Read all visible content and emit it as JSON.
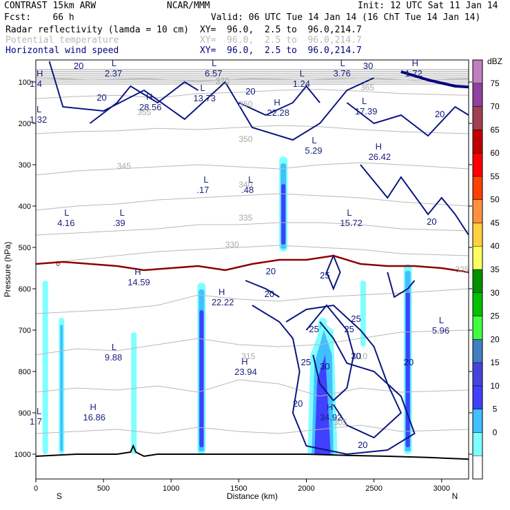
{
  "header": {
    "title": "CONTRAST 15km ARW",
    "org": "NCAR/MMM",
    "init": "Init: 12 UTC Sat 11 Jan 14",
    "fcst": "Fcst:    66 h",
    "valid": "Valid: 06 UTC Tue 14 Jan 14 (16 ChT Tue 14 Jan 14)",
    "fields": [
      {
        "name": "Radar reflectivity (lamda = 10 cm)",
        "xy": "XY=  96.0,  2.5 to  96.0,214.7",
        "color": "#000000"
      },
      {
        "name": "Potential temperature",
        "xy": "XY=  96.0,  2.5 to  96.0,214.7",
        "color": "#b8b8b8"
      },
      {
        "name": "Horizontal wind speed",
        "xy": "XY=  96.0,  2.5 to  96.0,214.7",
        "color": "#000080"
      }
    ]
  },
  "chart_data": {
    "type": "cross-section",
    "xlabel": "Distance (km)",
    "ylabel": "Pressure (hPa)",
    "xlim": [
      0,
      3200
    ],
    "ylim": [
      1050,
      50
    ],
    "x_ticks": [
      0,
      500,
      1000,
      1500,
      2000,
      2500,
      3000
    ],
    "y_ticks": [
      100,
      200,
      300,
      400,
      500,
      600,
      700,
      800,
      900,
      1000
    ],
    "x_end_labels": {
      "left": "S",
      "right": "N"
    },
    "colorbar": {
      "unit": "dBZ",
      "levels": [
        0,
        5,
        10,
        15,
        20,
        25,
        30,
        35,
        40,
        45,
        50,
        55,
        60,
        65,
        70,
        75
      ],
      "colors": [
        "#ffffff",
        "#80ffff",
        "#40c0ff",
        "#4040ff",
        "#4444dd",
        "#4080c0",
        "#40ff40",
        "#00c000",
        "#009000",
        "#ffff60",
        "#ffd040",
        "#ff9040",
        "#ff4000",
        "#ff0000",
        "#c00000",
        "#a04050",
        "#9040a0",
        "#c080c0"
      ]
    },
    "reflectivity_columns": [
      {
        "x": 70,
        "top": 580,
        "bottom": 1000,
        "max_dbz": 10
      },
      {
        "x": 190,
        "top": 670,
        "bottom": 1000,
        "max_dbz": 15
      },
      {
        "x": 725,
        "top": 705,
        "bottom": 1000,
        "max_dbz": 10
      },
      {
        "x": 1225,
        "top": 585,
        "bottom": 1000,
        "max_dbz": 20
      },
      {
        "x": 1830,
        "top": 280,
        "bottom": 510,
        "max_dbz": 20
      },
      {
        "x": 2120,
        "top": 670,
        "bottom": 1000,
        "max_dbz": 20
      },
      {
        "x": 2420,
        "top": 580,
        "bottom": 740,
        "max_dbz": 10
      },
      {
        "x": 2750,
        "top": 540,
        "bottom": 1000,
        "max_dbz": 20
      }
    ],
    "theta_labels": [
      "370",
      "365",
      "360",
      "355",
      "350",
      "345",
      "340",
      "335",
      "330",
      "325",
      "310",
      "305",
      "315"
    ],
    "wind_labels": [
      "20",
      "25",
      "30"
    ],
    "extrema": [
      {
        "type": "H",
        "value": "28.56",
        "x": 815,
        "p": 150
      },
      {
        "type": "L",
        "value": "13.73",
        "x": 1215,
        "p": 128
      },
      {
        "type": "H",
        "value": "22.28",
        "x": 1760,
        "p": 163
      },
      {
        "type": "L",
        "value": "17.39",
        "x": 2410,
        "p": 160
      },
      {
        "type": "L",
        "value": "1.32",
        "x": 5,
        "p": 180
      },
      {
        "type": "L",
        "value": "5.29",
        "x": 2040,
        "p": 255
      },
      {
        "type": "H",
        "value": "26.42",
        "x": 2510,
        "p": 270
      },
      {
        "type": "L",
        "value": ".17",
        "x": 1240,
        "p": 350
      },
      {
        "type": "L",
        "value": ".48",
        "x": 1570,
        "p": 350
      },
      {
        "type": "L",
        "value": "4.16",
        "x": 210,
        "p": 430
      },
      {
        "type": "L",
        "value": ".39",
        "x": 620,
        "p": 430
      },
      {
        "type": "L",
        "value": "15.72",
        "x": 2300,
        "p": 430
      },
      {
        "type": "H",
        "value": "14.59",
        "x": 730,
        "p": 573
      },
      {
        "type": "H",
        "value": "22.22",
        "x": 1350,
        "p": 622
      },
      {
        "type": "L",
        "value": "5.96",
        "x": 2980,
        "p": 690
      },
      {
        "type": "L",
        "value": "9.88",
        "x": 560,
        "p": 755
      },
      {
        "type": "H",
        "value": "23.94",
        "x": 1520,
        "p": 790
      },
      {
        "type": "H",
        "value": "16.86",
        "x": 400,
        "p": 900
      },
      {
        "type": "H",
        "value": "34.92",
        "x": 2150,
        "p": 900
      },
      {
        "type": "L",
        "value": "1.7",
        "x": 5,
        "p": 910
      },
      {
        "type": "L",
        "value": "2.37",
        "x": 560,
        "p": 68
      },
      {
        "type": "L",
        "value": "6.57",
        "x": 1300,
        "p": 68
      },
      {
        "type": "L",
        "value": "1.24",
        "x": 1950,
        "p": 93
      },
      {
        "type": "L",
        "value": "3.76",
        "x": 2250,
        "p": 68
      },
      {
        "type": "H",
        "value": "1.72",
        "x": 2780,
        "p": 68
      },
      {
        "type": "H",
        "value": "1.4",
        "x": 5,
        "p": 93
      }
    ],
    "freezing_level_label": "0"
  }
}
